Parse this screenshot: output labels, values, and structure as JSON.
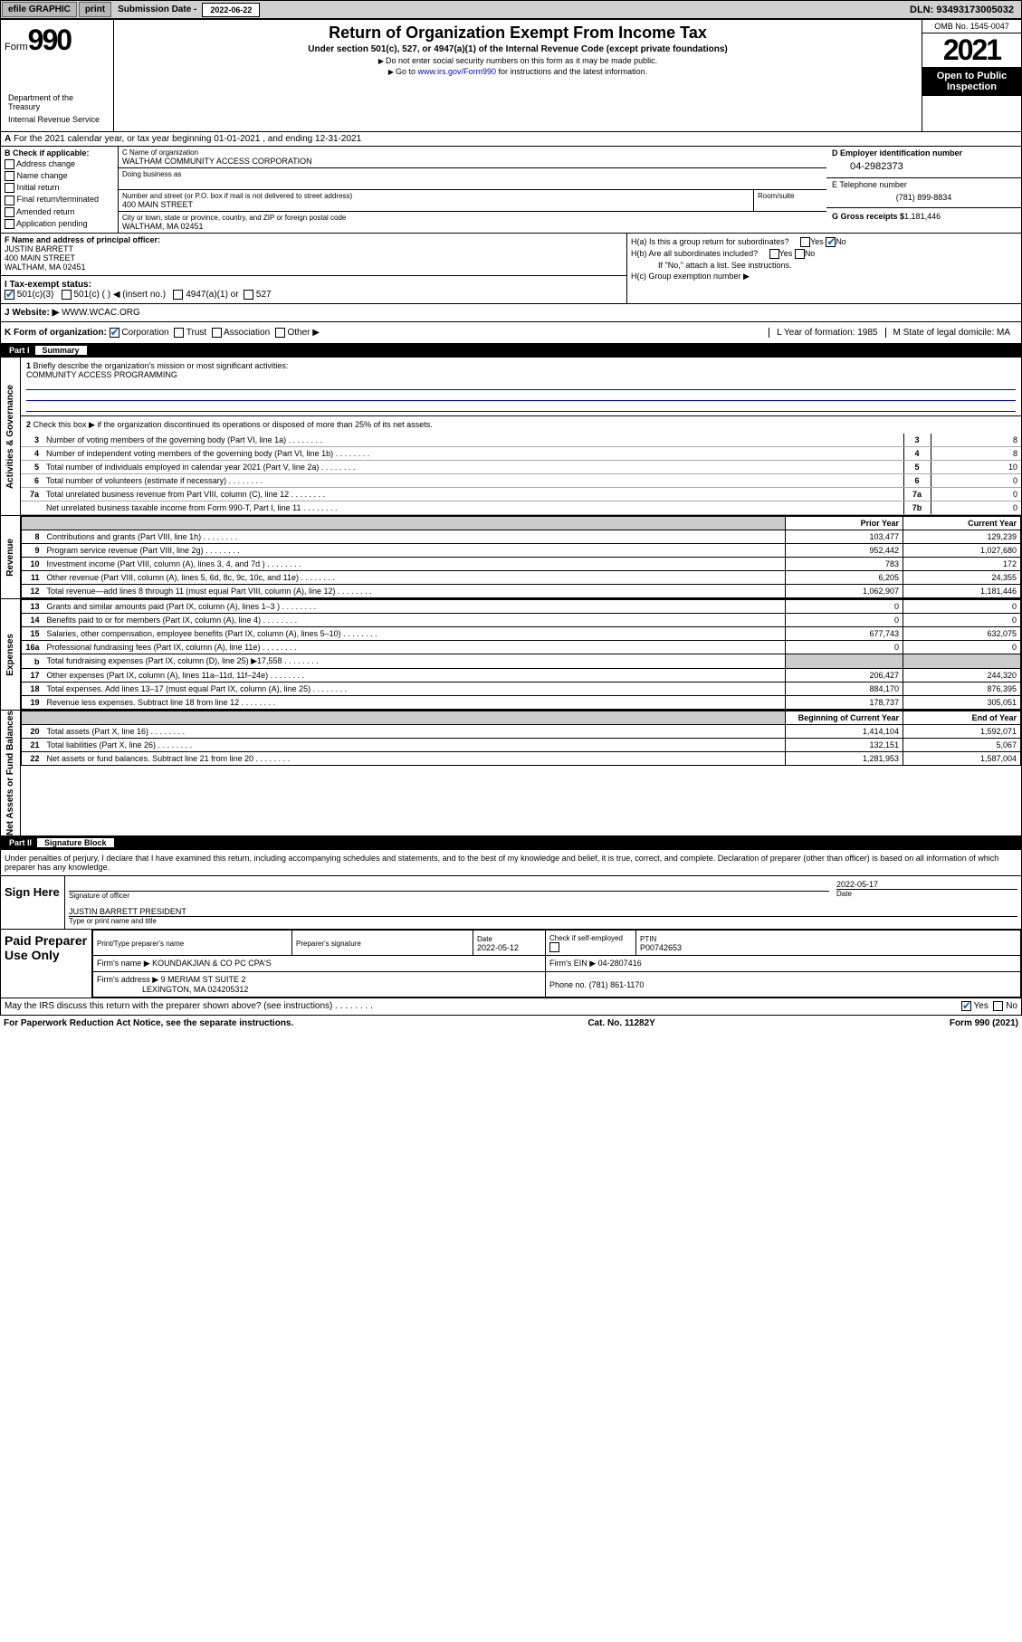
{
  "topbar": {
    "efile": "efile GRAPHIC",
    "print": "print",
    "sub_label": "Submission Date -",
    "sub_date": "2022-06-22",
    "dln": "DLN: 93493173005032"
  },
  "header": {
    "form_word": "Form",
    "form_num": "990",
    "title": "Return of Organization Exempt From Income Tax",
    "subtitle": "Under section 501(c), 527, or 4947(a)(1) of the Internal Revenue Code (except private foundations)",
    "inst1": "Do not enter social security numbers on this form as it may be made public.",
    "inst2_pre": "Go to ",
    "inst2_link": "www.irs.gov/Form990",
    "inst2_post": " for instructions and the latest information.",
    "omb": "OMB No. 1545-0047",
    "year": "2021",
    "open_public": "Open to Public Inspection",
    "dept": "Department of the Treasury",
    "irs": "Internal Revenue Service"
  },
  "lineA": "For the 2021 calendar year, or tax year beginning 01-01-2021   , and ending 12-31-2021",
  "colB": {
    "label": "B Check if applicable:",
    "opts": [
      "Address change",
      "Name change",
      "Initial return",
      "Final return/terminated",
      "Amended return",
      "Application pending"
    ]
  },
  "colC": {
    "name_label": "C Name of organization",
    "name": "WALTHAM COMMUNITY ACCESS CORPORATION",
    "dba_label": "Doing business as",
    "street_label": "Number and street (or P.O. box if mail is not delivered to street address)",
    "room_label": "Room/suite",
    "street": "400 MAIN STREET",
    "city_label": "City or town, state or province, country, and ZIP or foreign postal code",
    "city": "WALTHAM, MA  02451"
  },
  "colD": {
    "ein_label": "D Employer identification number",
    "ein": "04-2982373",
    "tel_label": "E Telephone number",
    "tel": "(781) 899-8834",
    "gross_label": "G Gross receipts $",
    "gross": "1,181,446"
  },
  "rowF": {
    "label": "F  Name and address of principal officer:",
    "name": "JUSTIN BARRETT",
    "addr1": "400 MAIN STREET",
    "addr2": "WALTHAM, MA  02451"
  },
  "rowH": {
    "ha": "H(a)  Is this a group return for subordinates?",
    "hb": "H(b)  Are all subordinates included?",
    "hb_note": "If \"No,\" attach a list. See instructions.",
    "hc": "H(c)  Group exemption number ▶",
    "yes": "Yes",
    "no": "No"
  },
  "rowI": {
    "label": "I    Tax-exempt status:",
    "opt1": "501(c)(3)",
    "opt2": "501(c) (   ) ◀ (insert no.)",
    "opt3": "4947(a)(1) or",
    "opt4": "527"
  },
  "rowJ": {
    "label": "J    Website: ▶",
    "val": "WWW.WCAC.ORG"
  },
  "rowK": {
    "label": "K Form of organization:",
    "corp": "Corporation",
    "trust": "Trust",
    "assoc": "Association",
    "other": "Other ▶",
    "L": "L Year of formation: 1985",
    "M": "M State of legal domicile: MA"
  },
  "part1": {
    "label": "Part I",
    "title": "Summary"
  },
  "gov": {
    "label": "Activities & Governance",
    "l1": "Briefly describe the organization's mission or most significant activities:",
    "l1v": "COMMUNITY ACCESS PROGRAMMING",
    "l2": "Check this box ▶       if the organization discontinued its operations or disposed of more than 25% of its net assets.",
    "rows": [
      {
        "n": "3",
        "t": "Number of voting members of the governing body (Part VI, line 1a)",
        "b": "3",
        "v": "8"
      },
      {
        "n": "4",
        "t": "Number of independent voting members of the governing body (Part VI, line 1b)",
        "b": "4",
        "v": "8"
      },
      {
        "n": "5",
        "t": "Total number of individuals employed in calendar year 2021 (Part V, line 2a)",
        "b": "5",
        "v": "10"
      },
      {
        "n": "6",
        "t": "Total number of volunteers (estimate if necessary)",
        "b": "6",
        "v": "0"
      },
      {
        "n": "7a",
        "t": "Total unrelated business revenue from Part VIII, column (C), line 12",
        "b": "7a",
        "v": "0"
      },
      {
        "n": "",
        "t": "Net unrelated business taxable income from Form 990-T, Part I, line 11",
        "b": "7b",
        "v": "0"
      }
    ]
  },
  "rev": {
    "label": "Revenue",
    "h1": "Prior Year",
    "h2": "Current Year",
    "rows": [
      {
        "n": "8",
        "t": "Contributions and grants (Part VIII, line 1h)",
        "p": "103,477",
        "c": "129,239"
      },
      {
        "n": "9",
        "t": "Program service revenue (Part VIII, line 2g)",
        "p": "952,442",
        "c": "1,027,680"
      },
      {
        "n": "10",
        "t": "Investment income (Part VIII, column (A), lines 3, 4, and 7d )",
        "p": "783",
        "c": "172"
      },
      {
        "n": "11",
        "t": "Other revenue (Part VIII, column (A), lines 5, 6d, 8c, 9c, 10c, and 11e)",
        "p": "6,205",
        "c": "24,355"
      },
      {
        "n": "12",
        "t": "Total revenue—add lines 8 through 11 (must equal Part VIII, column (A), line 12)",
        "p": "1,062,907",
        "c": "1,181,446"
      }
    ]
  },
  "exp": {
    "label": "Expenses",
    "rows": [
      {
        "n": "13",
        "t": "Grants and similar amounts paid (Part IX, column (A), lines 1–3 )",
        "p": "0",
        "c": "0"
      },
      {
        "n": "14",
        "t": "Benefits paid to or for members (Part IX, column (A), line 4)",
        "p": "0",
        "c": "0"
      },
      {
        "n": "15",
        "t": "Salaries, other compensation, employee benefits (Part IX, column (A), lines 5–10)",
        "p": "677,743",
        "c": "632,075"
      },
      {
        "n": "16a",
        "t": "Professional fundraising fees (Part IX, column (A), line 11e)",
        "p": "0",
        "c": "0"
      },
      {
        "n": "b",
        "t": "Total fundraising expenses (Part IX, column (D), line 25) ▶17,558",
        "p": "",
        "c": "",
        "shade": true
      },
      {
        "n": "17",
        "t": "Other expenses (Part IX, column (A), lines 11a–11d, 11f–24e)",
        "p": "206,427",
        "c": "244,320"
      },
      {
        "n": "18",
        "t": "Total expenses. Add lines 13–17 (must equal Part IX, column (A), line 25)",
        "p": "884,170",
        "c": "876,395"
      },
      {
        "n": "19",
        "t": "Revenue less expenses. Subtract line 18 from line 12",
        "p": "178,737",
        "c": "305,051"
      }
    ]
  },
  "net": {
    "label": "Net Assets or Fund Balances",
    "h1": "Beginning of Current Year",
    "h2": "End of Year",
    "rows": [
      {
        "n": "20",
        "t": "Total assets (Part X, line 16)",
        "p": "1,414,104",
        "c": "1,592,071"
      },
      {
        "n": "21",
        "t": "Total liabilities (Part X, line 26)",
        "p": "132,151",
        "c": "5,067"
      },
      {
        "n": "22",
        "t": "Net assets or fund balances. Subtract line 21 from line 20",
        "p": "1,281,953",
        "c": "1,587,004"
      }
    ]
  },
  "part2": {
    "label": "Part II",
    "title": "Signature Block"
  },
  "sig": {
    "decl": "Under penalties of perjury, I declare that I have examined this return, including accompanying schedules and statements, and to the best of my knowledge and belief, it is true, correct, and complete. Declaration of preparer (other than officer) is based on all information of which preparer has any knowledge.",
    "sign_here": "Sign Here",
    "sig_officer": "Signature of officer",
    "date": "Date",
    "date_val": "2022-05-17",
    "name": "JUSTIN BARRETT  PRESIDENT",
    "name_label": "Type or print name and title"
  },
  "prep": {
    "label": "Paid Preparer Use Only",
    "h1": "Print/Type preparer's name",
    "h2": "Preparer's signature",
    "h3": "Date",
    "h3v": "2022-05-12",
    "h4": "Check        if self-employed",
    "h5": "PTIN",
    "h5v": "P00742653",
    "firm_name_l": "Firm's name     ▶",
    "firm_name": "KOUNDAKJIAN & CO PC CPA'S",
    "firm_ein_l": "Firm's EIN ▶",
    "firm_ein": "04-2807416",
    "firm_addr_l": "Firm's address ▶",
    "firm_addr": "9 MERIAM ST SUITE 2",
    "firm_city": "LEXINGTON, MA  024205312",
    "phone_l": "Phone no.",
    "phone": "(781) 861-1170"
  },
  "footer": {
    "discuss": "May the IRS discuss this return with the preparer shown above? (see instructions)",
    "yes": "Yes",
    "no": "No",
    "pra": "For Paperwork Reduction Act Notice, see the separate instructions.",
    "cat": "Cat. No. 11282Y",
    "form": "Form 990 (2021)"
  }
}
